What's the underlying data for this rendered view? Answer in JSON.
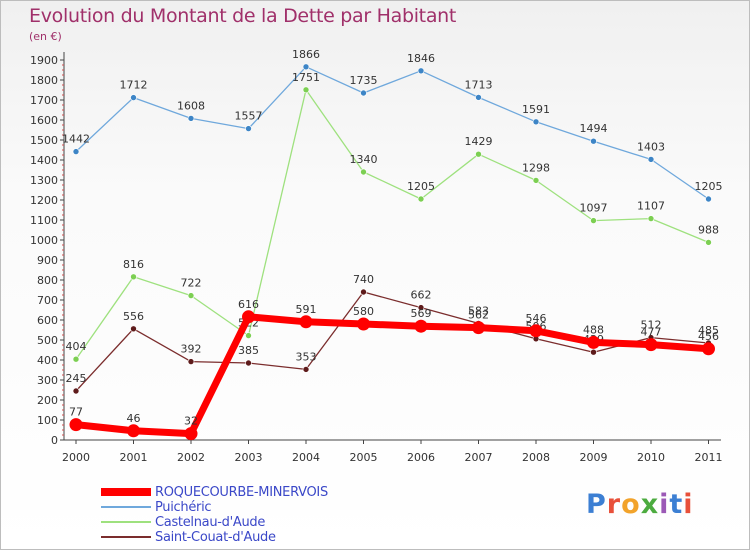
{
  "header": {
    "title": "Evolution du Montant de la Dette par Habitant",
    "subtitle": "(en €)"
  },
  "logo": {
    "text": "Proxiti",
    "colors": [
      "#3c7fd3",
      "#e8503a",
      "#f2a32b",
      "#4cab3f",
      "#9b59b6"
    ]
  },
  "chart_data": {
    "type": "line",
    "title": "Evolution du Montant de la Dette par Habitant",
    "ylabel": "(en €)",
    "xlabel": "",
    "categories": [
      "2000",
      "2001",
      "2002",
      "2003",
      "2004",
      "2005",
      "2006",
      "2007",
      "2008",
      "2009",
      "2010",
      "2011"
    ],
    "ylim": [
      0,
      1900
    ],
    "yticks": [
      0,
      100,
      200,
      300,
      400,
      500,
      600,
      700,
      800,
      900,
      1000,
      1100,
      1200,
      1300,
      1400,
      1500,
      1600,
      1700,
      1800,
      1900
    ],
    "grid": false,
    "legend_position": "bottom-left",
    "series": [
      {
        "name": "ROQUECOURBE-MINERVOIS",
        "color": "#ff0000",
        "marker": "#ff0000",
        "bold": true,
        "values": [
          77,
          46,
          32,
          616,
          591,
          580,
          569,
          562,
          546,
          488,
          477,
          456
        ]
      },
      {
        "name": "Puichéric",
        "color": "#6fa8dc",
        "marker": "#3d85c6",
        "bold": false,
        "values": [
          1442,
          1712,
          1608,
          1557,
          1866,
          1735,
          1846,
          1713,
          1591,
          1494,
          1403,
          1205
        ]
      },
      {
        "name": "Castelnau-d'Aude",
        "color": "#9ee17e",
        "marker": "#7ccf52",
        "bold": false,
        "values": [
          404,
          816,
          722,
          522,
          1751,
          1340,
          1205,
          1429,
          1298,
          1097,
          1107,
          988
        ]
      },
      {
        "name": "Saint-Couat-d'Aude",
        "color": "#7b2d2d",
        "marker": "#5e1b1b",
        "bold": false,
        "values": [
          245,
          556,
          392,
          385,
          353,
          740,
          662,
          583,
          506,
          439,
          512,
          485
        ]
      }
    ]
  }
}
